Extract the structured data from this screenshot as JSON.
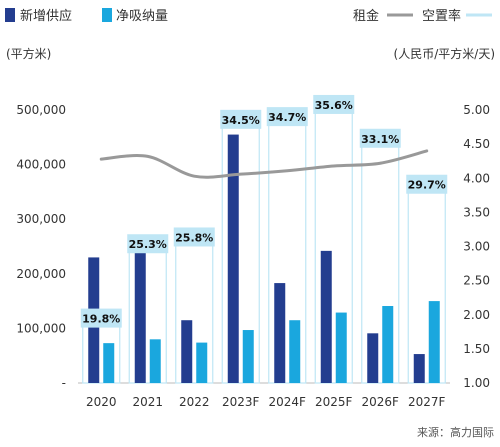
{
  "chart_data": {
    "type": "bar",
    "categories": [
      "2020",
      "2021",
      "2022",
      "2023F",
      "2024F",
      "2025F",
      "2026F",
      "2027F"
    ],
    "series": [
      {
        "name": "新增供应",
        "kind": "bar",
        "axis": "left",
        "color": "#233d8f",
        "values": [
          230000,
          252000,
          115000,
          455000,
          183000,
          242000,
          91000,
          53000
        ]
      },
      {
        "name": "净吸纳量",
        "kind": "bar",
        "axis": "left",
        "color": "#1aa7de",
        "values": [
          73000,
          80000,
          74000,
          97000,
          115000,
          129000,
          141000,
          150000
        ]
      },
      {
        "name": "租金",
        "kind": "line",
        "axis": "right",
        "color": "#999999",
        "values": [
          4.28,
          4.32,
          4.03,
          4.06,
          4.11,
          4.18,
          4.22,
          4.4
        ]
      },
      {
        "name": "空置率",
        "kind": "label",
        "color": "#bfe6f5",
        "values": [
          19.8,
          25.3,
          25.8,
          34.5,
          34.7,
          35.6,
          33.1,
          29.7
        ],
        "labels": [
          "19.8%",
          "25.3%",
          "25.8%",
          "34.5%",
          "34.7%",
          "35.6%",
          "33.1%",
          "29.7%"
        ]
      }
    ],
    "left_axis": {
      "unit": "(平方米)",
      "ticks": [
        "-",
        "100,000",
        "200,000",
        "300,000",
        "400,000",
        "500,000"
      ],
      "ylim": [
        0,
        500000
      ]
    },
    "right_axis": {
      "unit": "(人民币/平方米/天)",
      "ticks": [
        "1.00",
        "1.50",
        "2.00",
        "2.50",
        "3.00",
        "3.50",
        "4.00",
        "4.50",
        "5.00"
      ],
      "ylim": [
        1.0,
        5.0
      ]
    },
    "legend_position": "top",
    "grid": false
  },
  "source": "来源：高力国际"
}
